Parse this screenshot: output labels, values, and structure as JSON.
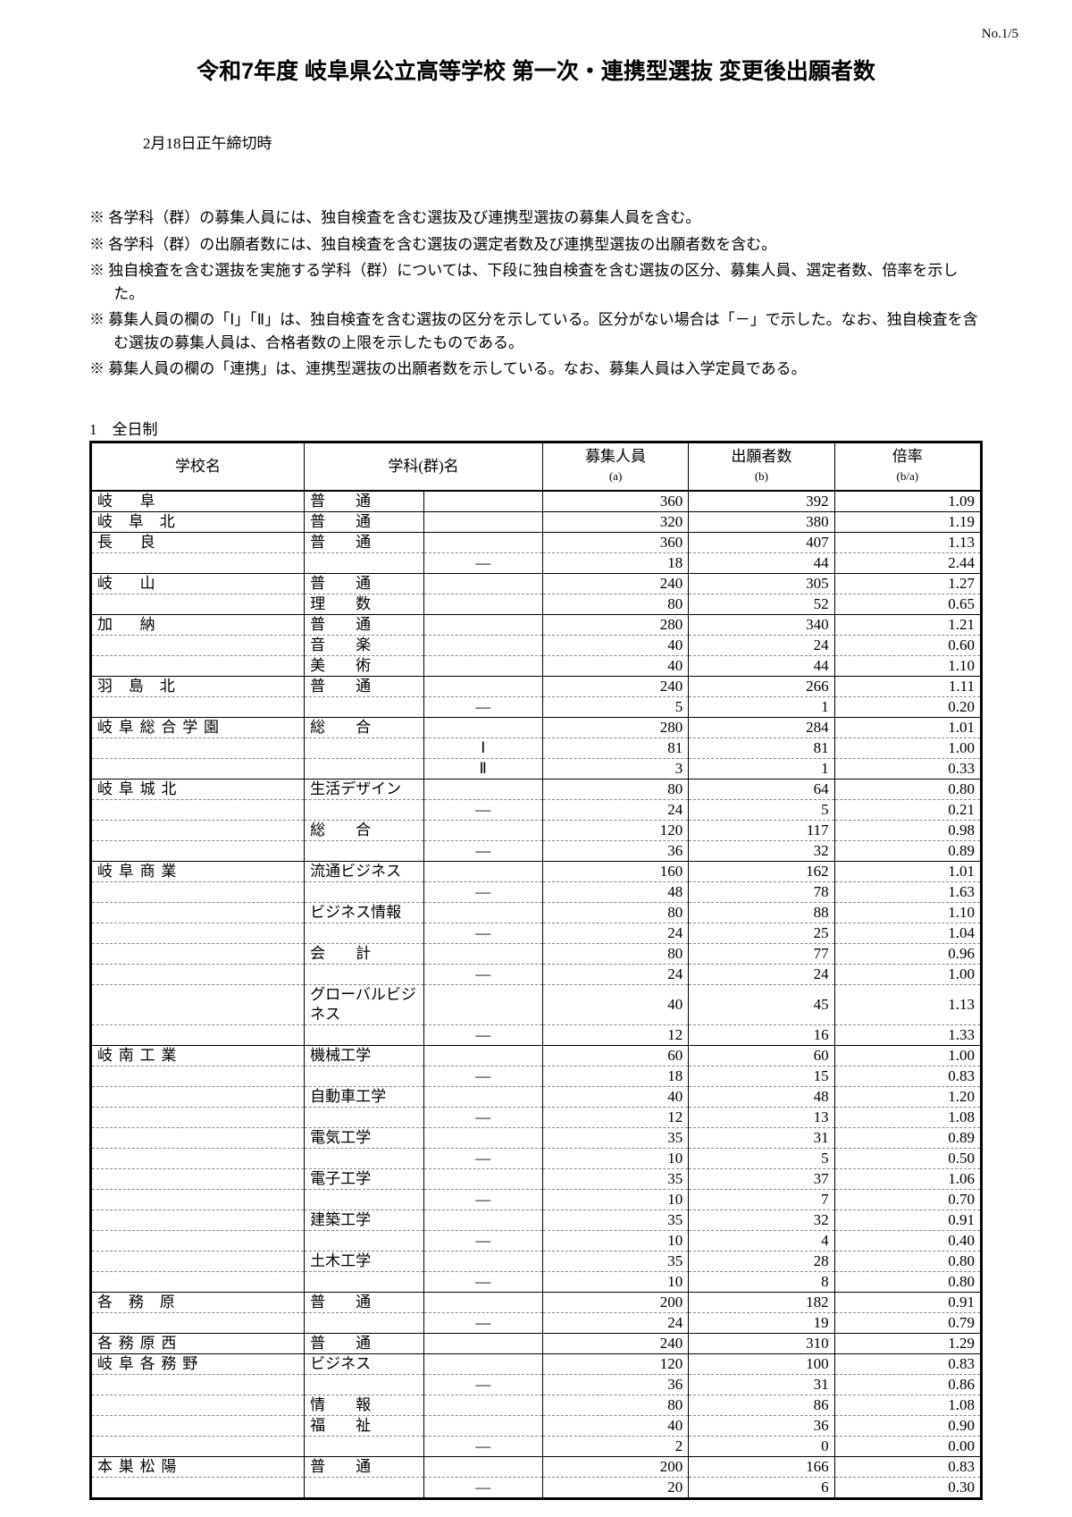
{
  "page_number": "No.1/5",
  "title": "令和7年度 岐阜県公立高等学校 第一次・連携型選抜 変更後出願者数",
  "deadline": "2月18日正午締切時",
  "notes": [
    "※ 各学科（群）の募集人員には、独自検査を含む選抜及び連携型選抜の募集人員を含む。",
    "※ 各学科（群）の出願者数には、独自検査を含む選抜の選定者数及び連携型選抜の出願者数を含む。",
    "※ 独自検査を含む選抜を実施する学科（群）については、下段に独自検査を含む選抜の区分、募集人員、選定者数、倍率を示した。",
    "※ 募集人員の欄の「Ⅰ」「Ⅱ」は、独自検査を含む選抜の区分を示している。区分がない場合は「－」で示した。なお、独自検査を含む選抜の募集人員は、合格者数の上限を示したものである。",
    "※ 募集人員の欄の「連携」は、連携型選抜の出願者数を示している。なお、募集人員は入学定員である。"
  ],
  "section_label": "1　全日制",
  "headers": {
    "school": "学校名",
    "dept": "学科(群)名",
    "capacity": "募集人員",
    "capacity_sub": "(a)",
    "applicants": "出願者数",
    "applicants_sub": "(b)",
    "ratio": "倍率",
    "ratio_sub": "(b/a)"
  },
  "rows": [
    {
      "school": "岐　阜",
      "dept": "普　通",
      "mark": "",
      "a": "360",
      "b": "392",
      "r": "1.09",
      "solid": true
    },
    {
      "school": "岐 阜 北",
      "dept": "普　通",
      "mark": "",
      "a": "320",
      "b": "380",
      "r": "1.19",
      "solid": true
    },
    {
      "school": "長　良",
      "dept": "普　通",
      "mark": "",
      "a": "360",
      "b": "407",
      "r": "1.13",
      "solid": true
    },
    {
      "school": "",
      "dept": "",
      "mark": "―",
      "a": "18",
      "b": "44",
      "r": "2.44"
    },
    {
      "school": "岐　山",
      "dept": "普　通",
      "mark": "",
      "a": "240",
      "b": "305",
      "r": "1.27",
      "solid": true
    },
    {
      "school": "",
      "dept": "理　数",
      "mark": "",
      "a": "80",
      "b": "52",
      "r": "0.65"
    },
    {
      "school": "加　納",
      "dept": "普　通",
      "mark": "",
      "a": "280",
      "b": "340",
      "r": "1.21",
      "solid": true
    },
    {
      "school": "",
      "dept": "音　楽",
      "mark": "",
      "a": "40",
      "b": "24",
      "r": "0.60"
    },
    {
      "school": "",
      "dept": "美　術",
      "mark": "",
      "a": "40",
      "b": "44",
      "r": "1.10"
    },
    {
      "school": "羽 島 北",
      "dept": "普　通",
      "mark": "",
      "a": "240",
      "b": "266",
      "r": "1.11",
      "solid": true
    },
    {
      "school": "",
      "dept": "",
      "mark": "―",
      "a": "5",
      "b": "1",
      "r": "0.20"
    },
    {
      "school": "岐阜総合学園",
      "dept": "総　合",
      "mark": "",
      "a": "280",
      "b": "284",
      "r": "1.01",
      "solid": true
    },
    {
      "school": "",
      "dept": "",
      "mark": "Ⅰ",
      "a": "81",
      "b": "81",
      "r": "1.00"
    },
    {
      "school": "",
      "dept": "",
      "mark": "Ⅱ",
      "a": "3",
      "b": "1",
      "r": "0.33"
    },
    {
      "school": "岐阜城北",
      "dept": "生活デザイン",
      "mark": "",
      "a": "80",
      "b": "64",
      "r": "0.80",
      "solid": true,
      "noSpacing": true
    },
    {
      "school": "",
      "dept": "",
      "mark": "―",
      "a": "24",
      "b": "5",
      "r": "0.21"
    },
    {
      "school": "",
      "dept": "総　合",
      "mark": "",
      "a": "120",
      "b": "117",
      "r": "0.98"
    },
    {
      "school": "",
      "dept": "",
      "mark": "―",
      "a": "36",
      "b": "32",
      "r": "0.89"
    },
    {
      "school": "岐阜商業",
      "dept": "流通ビジネス",
      "mark": "",
      "a": "160",
      "b": "162",
      "r": "1.01",
      "solid": true,
      "noSpacing": true
    },
    {
      "school": "",
      "dept": "",
      "mark": "―",
      "a": "48",
      "b": "78",
      "r": "1.63"
    },
    {
      "school": "",
      "dept": "ビジネス情報",
      "mark": "",
      "a": "80",
      "b": "88",
      "r": "1.10",
      "noSpacing": true
    },
    {
      "school": "",
      "dept": "",
      "mark": "―",
      "a": "24",
      "b": "25",
      "r": "1.04"
    },
    {
      "school": "",
      "dept": "会　計",
      "mark": "",
      "a": "80",
      "b": "77",
      "r": "0.96"
    },
    {
      "school": "",
      "dept": "",
      "mark": "―",
      "a": "24",
      "b": "24",
      "r": "1.00"
    },
    {
      "school": "",
      "dept": "グローバルビジネス",
      "mark": "",
      "a": "40",
      "b": "45",
      "r": "1.13",
      "noSpacing": true
    },
    {
      "school": "",
      "dept": "",
      "mark": "―",
      "a": "12",
      "b": "16",
      "r": "1.33"
    },
    {
      "school": "岐南工業",
      "dept": "機械工学",
      "mark": "",
      "a": "60",
      "b": "60",
      "r": "1.00",
      "solid": true,
      "noSpacing": true
    },
    {
      "school": "",
      "dept": "",
      "mark": "―",
      "a": "18",
      "b": "15",
      "r": "0.83"
    },
    {
      "school": "",
      "dept": "自動車工学",
      "mark": "",
      "a": "40",
      "b": "48",
      "r": "1.20",
      "noSpacing": true
    },
    {
      "school": "",
      "dept": "",
      "mark": "―",
      "a": "12",
      "b": "13",
      "r": "1.08"
    },
    {
      "school": "",
      "dept": "電気工学",
      "mark": "",
      "a": "35",
      "b": "31",
      "r": "0.89",
      "noSpacing": true
    },
    {
      "school": "",
      "dept": "",
      "mark": "―",
      "a": "10",
      "b": "5",
      "r": "0.50"
    },
    {
      "school": "",
      "dept": "電子工学",
      "mark": "",
      "a": "35",
      "b": "37",
      "r": "1.06",
      "noSpacing": true
    },
    {
      "school": "",
      "dept": "",
      "mark": "―",
      "a": "10",
      "b": "7",
      "r": "0.70"
    },
    {
      "school": "",
      "dept": "建築工学",
      "mark": "",
      "a": "35",
      "b": "32",
      "r": "0.91",
      "noSpacing": true
    },
    {
      "school": "",
      "dept": "",
      "mark": "―",
      "a": "10",
      "b": "4",
      "r": "0.40"
    },
    {
      "school": "",
      "dept": "土木工学",
      "mark": "",
      "a": "35",
      "b": "28",
      "r": "0.80",
      "noSpacing": true
    },
    {
      "school": "",
      "dept": "",
      "mark": "―",
      "a": "10",
      "b": "8",
      "r": "0.80"
    },
    {
      "school": "各 務 原",
      "dept": "普　通",
      "mark": "",
      "a": "200",
      "b": "182",
      "r": "0.91",
      "solid": true
    },
    {
      "school": "",
      "dept": "",
      "mark": "―",
      "a": "24",
      "b": "19",
      "r": "0.79"
    },
    {
      "school": "各務原西",
      "dept": "普　通",
      "mark": "",
      "a": "240",
      "b": "310",
      "r": "1.29",
      "solid": true
    },
    {
      "school": "岐阜各務野",
      "dept": "ビジネス",
      "mark": "",
      "a": "120",
      "b": "100",
      "r": "0.83",
      "solid": true,
      "noSpacing": true
    },
    {
      "school": "",
      "dept": "",
      "mark": "―",
      "a": "36",
      "b": "31",
      "r": "0.86"
    },
    {
      "school": "",
      "dept": "情　報",
      "mark": "",
      "a": "80",
      "b": "86",
      "r": "1.08"
    },
    {
      "school": "",
      "dept": "福　祉",
      "mark": "",
      "a": "40",
      "b": "36",
      "r": "0.90"
    },
    {
      "school": "",
      "dept": "",
      "mark": "―",
      "a": "2",
      "b": "0",
      "r": "0.00"
    },
    {
      "school": "本巣松陽",
      "dept": "普　通",
      "mark": "",
      "a": "200",
      "b": "166",
      "r": "0.83",
      "solid": true
    },
    {
      "school": "",
      "dept": "",
      "mark": "―",
      "a": "20",
      "b": "6",
      "r": "0.30"
    }
  ]
}
